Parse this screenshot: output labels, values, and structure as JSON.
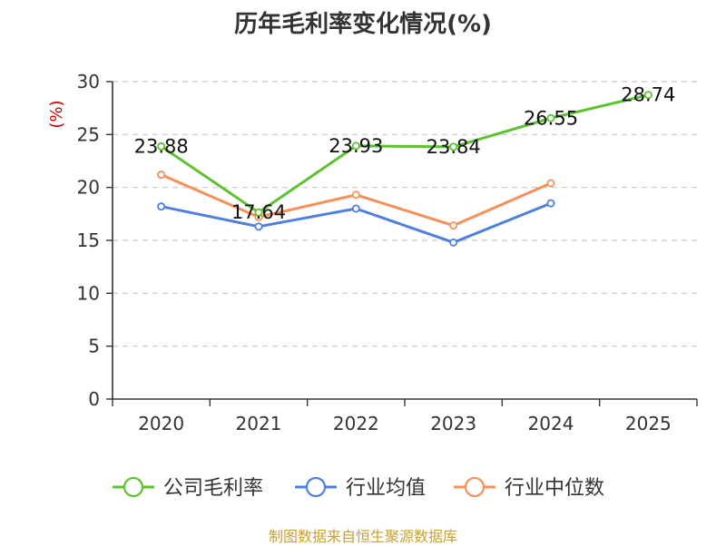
{
  "chart_data": {
    "type": "line",
    "title": "历年毛利率变化情况(%)",
    "ylabel": "(%)",
    "xlabel": "",
    "categories": [
      "2020",
      "2021",
      "2022",
      "2023",
      "2024",
      "2025"
    ],
    "ylim": [
      0,
      30
    ],
    "yticks": [
      0,
      5,
      10,
      15,
      20,
      25,
      30
    ],
    "grid": true,
    "legend": "bottom",
    "series": [
      {
        "name": "公司毛利率",
        "color": "#5cc22f",
        "values": [
          23.88,
          17.64,
          23.93,
          23.84,
          26.55,
          28.74
        ],
        "labels": [
          "23.88",
          "17.64",
          "23.93",
          "23.84",
          "26.55",
          "28.74"
        ]
      },
      {
        "name": "行业均值",
        "color": "#4e7fde",
        "values": [
          18.2,
          16.3,
          18.0,
          14.8,
          18.5,
          null
        ]
      },
      {
        "name": "行业中位数",
        "color": "#f5905a",
        "values": [
          21.2,
          17.2,
          19.3,
          16.4,
          20.4,
          null
        ]
      }
    ]
  },
  "source": "制图数据来自恒生聚源数据库"
}
